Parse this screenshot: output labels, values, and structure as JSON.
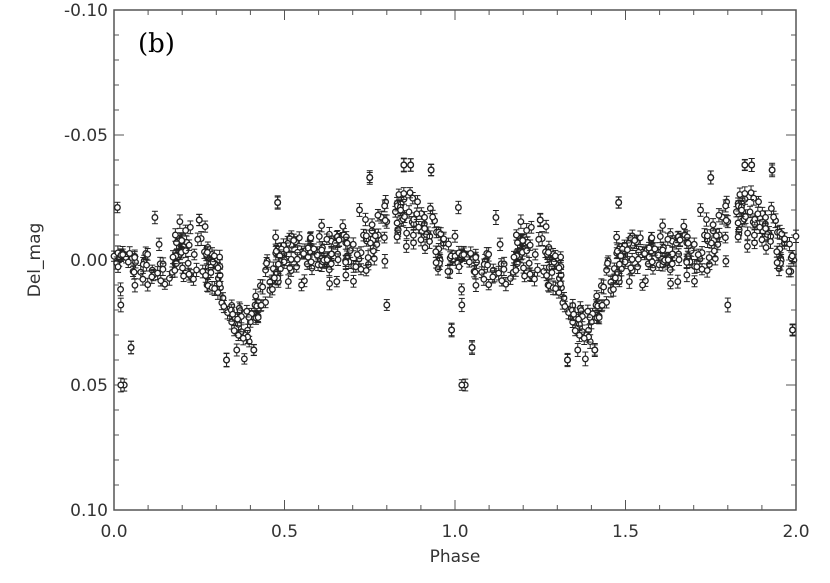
{
  "chart_data": {
    "type": "scatter",
    "panel_label": "(b)",
    "xlabel": "Phase",
    "ylabel": "Del_mag",
    "xlim": [
      0.0,
      2.0
    ],
    "ylim": [
      -0.1,
      0.1
    ],
    "y_inverted": true,
    "grid": false,
    "error_bars": true,
    "x_ticks": [
      "0.0",
      "0.5",
      "1.0",
      "1.5",
      "2.0"
    ],
    "y_ticks": [
      "-0.10",
      "-0.05",
      "0.00",
      "0.05",
      "0.10"
    ],
    "y_tick_values": [
      -0.1,
      -0.05,
      0.0,
      0.05,
      0.1
    ],
    "marker": "open-circle",
    "marker_color": "#222222",
    "sampled_points": [
      {
        "x": 0.01,
        "y": -0.021
      },
      {
        "x": 0.02,
        "y": 0.018
      },
      {
        "x": 0.03,
        "y": 0.05
      },
      {
        "x": 0.05,
        "y": 0.035
      },
      {
        "x": 0.12,
        "y": -0.017
      },
      {
        "x": 0.18,
        "y": -0.01
      },
      {
        "x": 0.25,
        "y": -0.016
      },
      {
        "x": 0.33,
        "y": 0.04
      },
      {
        "x": 0.36,
        "y": 0.036
      },
      {
        "x": 0.41,
        "y": 0.036
      },
      {
        "x": 0.48,
        "y": -0.023
      },
      {
        "x": 0.55,
        "y": 0.01
      },
      {
        "x": 0.66,
        "y": -0.008
      },
      {
        "x": 0.72,
        "y": -0.02
      },
      {
        "x": 0.75,
        "y": -0.033
      },
      {
        "x": 0.8,
        "y": 0.018
      },
      {
        "x": 0.85,
        "y": -0.038
      },
      {
        "x": 0.87,
        "y": -0.038
      },
      {
        "x": 0.93,
        "y": -0.036
      },
      {
        "x": 0.99,
        "y": 0.028
      },
      {
        "x": 1.02,
        "y": 0.05
      },
      {
        "x": 1.05,
        "y": 0.035
      },
      {
        "x": 1.25,
        "y": -0.016
      },
      {
        "x": 1.33,
        "y": 0.04
      },
      {
        "x": 1.41,
        "y": 0.036
      },
      {
        "x": 1.48,
        "y": -0.023
      },
      {
        "x": 1.66,
        "y": -0.008
      },
      {
        "x": 1.75,
        "y": -0.033
      },
      {
        "x": 1.85,
        "y": -0.038
      },
      {
        "x": 1.87,
        "y": -0.038
      },
      {
        "x": 1.93,
        "y": -0.036
      },
      {
        "x": 1.99,
        "y": 0.028
      }
    ]
  }
}
